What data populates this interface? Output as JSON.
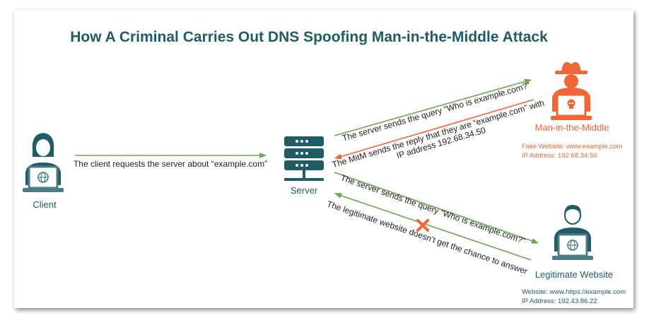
{
  "title": "How A Criminal Carries Out DNS Spoofing Man-in-the-Middle Attack",
  "nodes": {
    "client": {
      "label": "Client"
    },
    "server": {
      "label": "Server"
    },
    "mitm": {
      "label": "Man-in-the-Middle",
      "info_line1": "Fake Website: www.example.com",
      "info_line2": "IP Address: 192.68.34.50"
    },
    "legit": {
      "label": "Legitimate Website",
      "info_line1": "Website: www.https://example.com",
      "info_line2": "IP Address: 192.43.86.22"
    }
  },
  "edges": {
    "client_to_server": "The client requests the server about “example.com”",
    "server_to_mitm": "The server sends the query “Who is example.com?”",
    "mitm_to_server_line1": "The MitM sends the reply that they are “example.com” with",
    "mitm_to_server_line2": "IP address 192.68.34.50",
    "server_to_legit": "The server sends the query “Who is example.com?”",
    "legit_to_server": "The legitimate website doesn’t get the chance to answer"
  },
  "colors": {
    "teal": "#1f5c66",
    "orange": "#f26535",
    "green": "#6aa84f",
    "monitor": "#4a7d86"
  },
  "icons": {
    "client": "woman-user-laptop-icon",
    "server": "server-rack-icon",
    "mitm": "hacker-laptop-icon",
    "legit": "man-user-laptop-icon",
    "blocked": "cross-icon"
  }
}
